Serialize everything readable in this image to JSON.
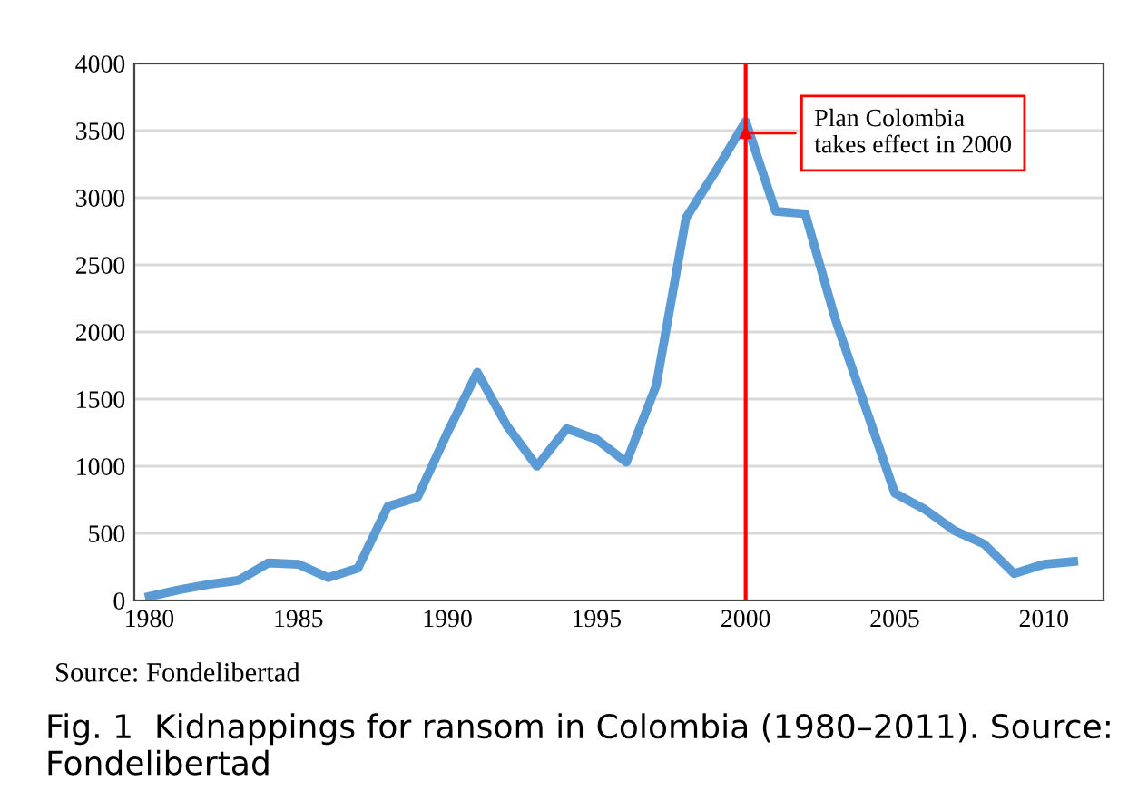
{
  "chart_data": {
    "type": "line",
    "x": [
      1980,
      1981,
      1982,
      1983,
      1984,
      1985,
      1986,
      1987,
      1988,
      1989,
      1990,
      1991,
      1992,
      1993,
      1994,
      1995,
      1996,
      1997,
      1998,
      1999,
      2000,
      2001,
      2002,
      2003,
      2004,
      2005,
      2006,
      2007,
      2008,
      2009,
      2010,
      2011
    ],
    "series": [
      {
        "color": "#5b9bd5",
        "values": [
          30,
          80,
          120,
          150,
          280,
          270,
          170,
          240,
          700,
          770,
          1250,
          1700,
          1300,
          1000,
          1280,
          1200,
          1030,
          1600,
          2850,
          3200,
          3570,
          2900,
          2880,
          2100,
          1450,
          800,
          680,
          520,
          420,
          200,
          270,
          290
        ]
      }
    ],
    "xlim": [
      1979.5,
      2012
    ],
    "xticks": [
      1980,
      1985,
      1990,
      1995,
      2000,
      2005,
      2010
    ],
    "ylim": [
      0,
      4000
    ],
    "yticks": [
      0,
      500,
      1000,
      1500,
      2000,
      2500,
      3000,
      3500,
      4000
    ],
    "grid": "y",
    "marker": "none",
    "line_style": "solid",
    "ref_lines": [
      {
        "axis": "x",
        "value": 2000,
        "label": "Plan Colombia\ntakes effect in 2000",
        "color": "#ff0000"
      }
    ],
    "annotations": [
      "Source: Fondelibertad",
      "Fig. 1  Kidnappings for ransom in Colombia (1980–2011). Source: Fondelibertad"
    ]
  }
}
